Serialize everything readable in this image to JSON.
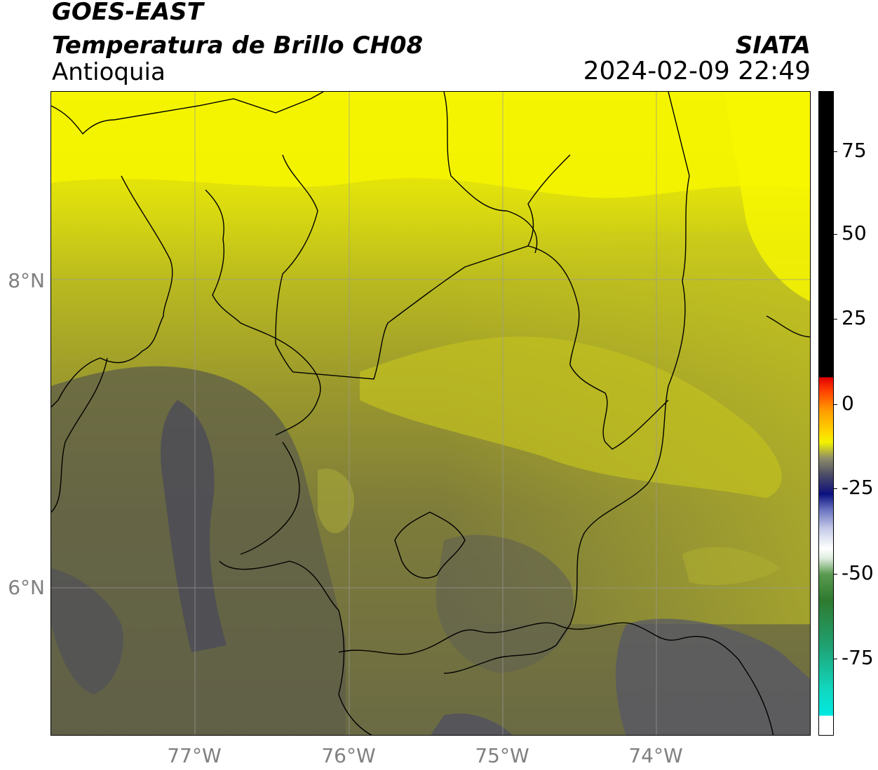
{
  "header": {
    "satellite": "GOES-EAST",
    "product": "Temperatura de Brillo CH08",
    "region": "Antioquia",
    "organization": "SIATA",
    "timestamp": "2024-02-09 22:49"
  },
  "axes": {
    "lat_ticks": [
      "8°N",
      "6°N"
    ],
    "lon_ticks": [
      "77°W",
      "76°W",
      "75°W",
      "74°W"
    ],
    "lat_range": [
      4.7,
      8.9
    ],
    "lon_range": [
      -77.9,
      -73.0
    ],
    "grid": true
  },
  "colorbar": {
    "ticks": [
      "75",
      "50",
      "25",
      "0",
      "-25",
      "-50",
      "-75"
    ],
    "range": [
      -95,
      92
    ],
    "colors": {
      "warm_black": "#000000",
      "red": "#e00000",
      "orange": "#ff9a00",
      "yellow": "#f2f200",
      "olive_gray": "#4d4d66",
      "navy": "#0a1080",
      "white": "#ffffff",
      "green": "#2f7a2f",
      "cyan": "#00e8e0"
    }
  }
}
